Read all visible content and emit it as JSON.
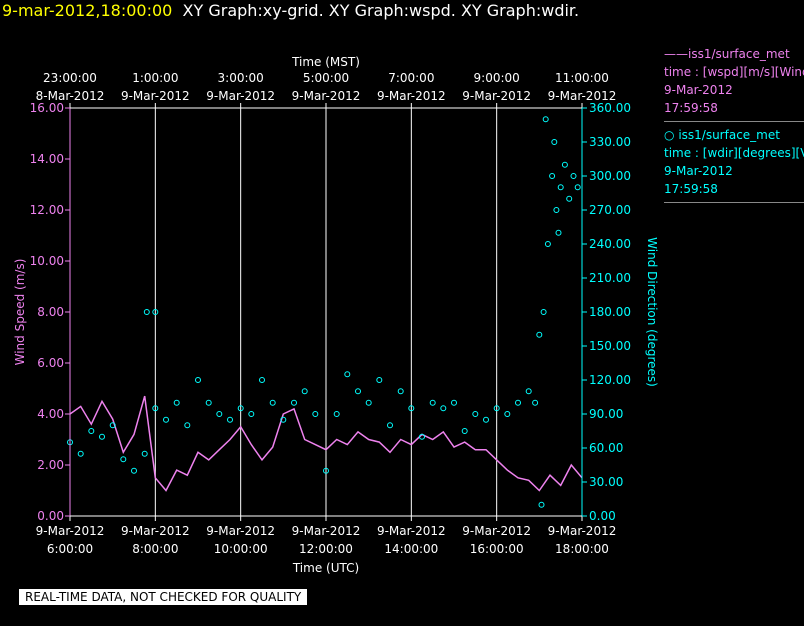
{
  "header": {
    "date": "9-mar-2012,18:00:00",
    "titles": "XY Graph:xy-grid.  XY Graph:wspd.  XY Graph:wdir."
  },
  "legend": [
    {
      "marker": "——",
      "source": "iss1/surface_met",
      "field": "time : [wspd][m/s][Wind",
      "date": "9-Mar-2012",
      "time": "17:59:58"
    },
    {
      "marker": "○",
      "source": "iss1/surface_met",
      "field": "time : [wdir][degrees][V",
      "date": "9-Mar-2012",
      "time": "17:59:58"
    }
  ],
  "footer": "REAL-TIME DATA, NOT CHECKED FOR QUALITY",
  "colors": {
    "background": "#000000",
    "wspd": "#ee82ee",
    "wdir": "#00ffff",
    "axis": "#ffffff",
    "header_date": "#ffff00"
  },
  "chart_data": {
    "type": "line",
    "top_axis": {
      "label": "Time (MST)",
      "ticks": [
        {
          "time": "23:00:00",
          "date": "8-Mar-2012"
        },
        {
          "time": "1:00:00",
          "date": "9-Mar-2012"
        },
        {
          "time": "3:00:00",
          "date": "9-Mar-2012"
        },
        {
          "time": "5:00:00",
          "date": "9-Mar-2012"
        },
        {
          "time": "7:00:00",
          "date": "9-Mar-2012"
        },
        {
          "time": "9:00:00",
          "date": "9-Mar-2012"
        },
        {
          "time": "11:00:00",
          "date": "9-Mar-2012"
        }
      ]
    },
    "bottom_axis": {
      "label": "Time (UTC)",
      "ticks": [
        {
          "date": "9-Mar-2012",
          "time": "6:00:00"
        },
        {
          "date": "9-Mar-2012",
          "time": "8:00:00"
        },
        {
          "date": "9-Mar-2012",
          "time": "10:00:00"
        },
        {
          "date": "9-Mar-2012",
          "time": "12:00:00"
        },
        {
          "date": "9-Mar-2012",
          "time": "14:00:00"
        },
        {
          "date": "9-Mar-2012",
          "time": "16:00:00"
        },
        {
          "date": "9-Mar-2012",
          "time": "18:00:00"
        }
      ]
    },
    "xlim_hours_utc": [
      6,
      18
    ],
    "vertical_gridlines": true,
    "left_axis": {
      "label": "Wind Speed (m/s)",
      "ylim": [
        0,
        16
      ],
      "ticks": [
        "0.00",
        "2.00",
        "4.00",
        "6.00",
        "8.00",
        "10.00",
        "12.00",
        "14.00",
        "16.00"
      ]
    },
    "right_axis": {
      "label": "Wind Direction (degrees)",
      "ylim": [
        0,
        360
      ],
      "ticks": [
        "0.00",
        "30.00",
        "60.00",
        "90.00",
        "120.00",
        "150.00",
        "180.00",
        "210.00",
        "240.00",
        "270.00",
        "300.00",
        "330.00",
        "360.00"
      ]
    },
    "series": [
      {
        "name": "wspd",
        "style": "line",
        "axis": "left",
        "x": [
          6.0,
          6.25,
          6.5,
          6.75,
          7.0,
          7.25,
          7.5,
          7.75,
          8.0,
          8.25,
          8.5,
          8.75,
          9.0,
          9.25,
          9.5,
          9.75,
          10.0,
          10.25,
          10.5,
          10.75,
          11.0,
          11.25,
          11.5,
          11.75,
          12.0,
          12.25,
          12.5,
          12.75,
          13.0,
          13.25,
          13.5,
          13.75,
          14.0,
          14.25,
          14.5,
          14.75,
          15.0,
          15.25,
          15.5,
          15.75,
          16.0,
          16.25,
          16.5,
          16.75,
          17.0,
          17.25,
          17.5,
          17.75,
          18.0
        ],
        "y": [
          4.0,
          4.3,
          3.6,
          4.5,
          3.8,
          2.5,
          3.2,
          4.7,
          1.5,
          1.0,
          1.8,
          1.6,
          2.5,
          2.2,
          2.6,
          3.0,
          3.5,
          2.8,
          2.2,
          2.7,
          4.0,
          4.2,
          3.0,
          2.8,
          2.6,
          3.0,
          2.8,
          3.3,
          3.0,
          2.9,
          2.5,
          3.0,
          2.8,
          3.2,
          3.0,
          3.3,
          2.7,
          2.9,
          2.6,
          2.6,
          2.2,
          1.8,
          1.5,
          1.4,
          1.0,
          1.6,
          1.2,
          2.0,
          1.5
        ]
      },
      {
        "name": "wdir",
        "style": "scatter",
        "axis": "right",
        "x": [
          6.0,
          6.25,
          6.5,
          6.75,
          7.0,
          7.25,
          7.5,
          7.75,
          8.0,
          8.25,
          8.5,
          8.75,
          9.0,
          9.25,
          9.5,
          9.75,
          10.0,
          10.25,
          10.5,
          10.75,
          11.0,
          11.25,
          11.5,
          11.75,
          12.0,
          12.25,
          12.5,
          12.75,
          13.0,
          13.25,
          13.5,
          13.75,
          14.0,
          14.25,
          14.5,
          14.75,
          15.0,
          15.25,
          15.5,
          15.75,
          16.0,
          16.25,
          16.5,
          16.75,
          17.0,
          17.1,
          17.2,
          17.3,
          17.4,
          17.5,
          17.6,
          17.7,
          17.8,
          17.9,
          7.8,
          8.0,
          17.15,
          17.35,
          17.45,
          16.9,
          17.05
        ],
        "y": [
          65,
          55,
          75,
          70,
          80,
          50,
          40,
          55,
          95,
          85,
          100,
          80,
          120,
          100,
          90,
          85,
          95,
          90,
          120,
          100,
          85,
          100,
          110,
          90,
          40,
          90,
          125,
          110,
          100,
          120,
          80,
          110,
          95,
          70,
          100,
          95,
          100,
          75,
          90,
          85,
          95,
          90,
          100,
          110,
          160,
          180,
          240,
          300,
          270,
          290,
          310,
          280,
          300,
          290,
          180,
          180,
          350,
          330,
          250,
          100,
          10
        ]
      }
    ]
  }
}
